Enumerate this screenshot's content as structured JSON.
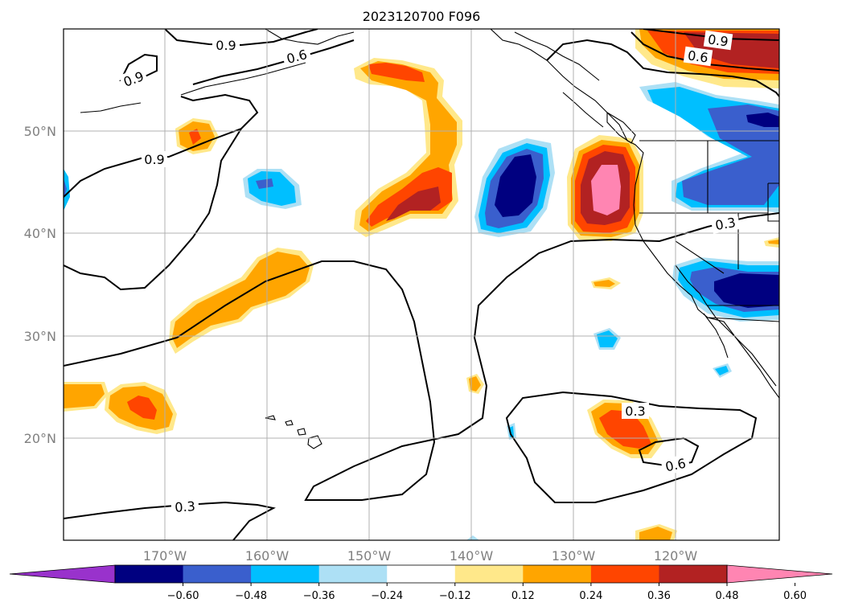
{
  "title": "2023120700 F096",
  "map": {
    "lon_range": [
      -180,
      -110
    ],
    "lat_range": [
      10,
      60
    ],
    "lon_ticks": [
      "170°W",
      "160°W",
      "150°W",
      "140°W",
      "130°W",
      "120°W"
    ],
    "lat_ticks": [
      "50°N",
      "40°N",
      "30°N",
      "20°N"
    ],
    "contour_labels": [
      "0.9",
      "0.6",
      "0.9",
      "0.9",
      "0.9",
      "0.6",
      "0.3",
      "0.3",
      "0.6",
      "0.3"
    ],
    "grid": true
  },
  "colorbar": {
    "ticks": [
      "−0.60",
      "−0.48",
      "−0.36",
      "−0.24",
      "−0.12",
      "0.12",
      "0.24",
      "0.36",
      "0.48",
      "0.60"
    ],
    "colors": [
      "#9932CC",
      "#000080",
      "#3A5FCD",
      "#00BFFF",
      "#ADE0F5",
      "#FFFFFF",
      "#FFE88A",
      "#FFA500",
      "#FF4500",
      "#B22222",
      "#FF85B2"
    ],
    "extend": "both"
  }
}
